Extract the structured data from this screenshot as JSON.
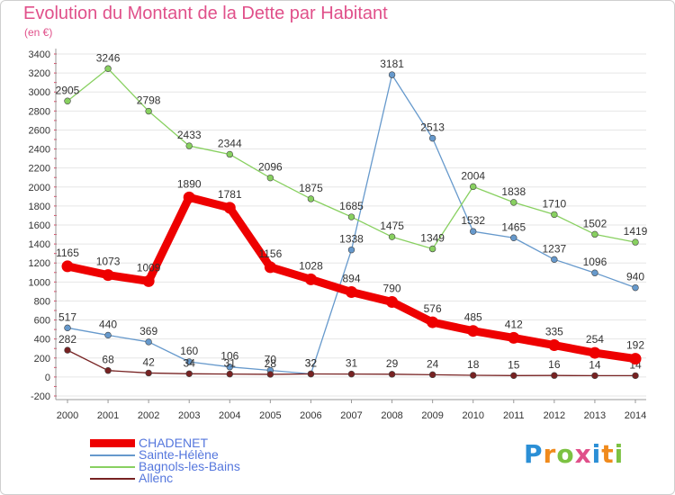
{
  "title": "Evolution du Montant de la Dette par Habitant",
  "subtitle": "(en €)",
  "logo": {
    "text": "Proxiti",
    "colors": [
      "#2b8fd6",
      "#f08a1c",
      "#7cc242",
      "#e0508a",
      "#2b8fd6",
      "#f08a1c",
      "#7cc242"
    ]
  },
  "chart_data": {
    "type": "line",
    "x": [
      "2000",
      "2001",
      "2002",
      "2003",
      "2004",
      "2005",
      "2006",
      "2007",
      "2008",
      "2009",
      "2010",
      "2011",
      "2012",
      "2013",
      "2014"
    ],
    "ylim": [
      -200,
      3400
    ],
    "yticks": [
      -200,
      0,
      200,
      400,
      600,
      800,
      1000,
      1200,
      1400,
      1600,
      1800,
      2000,
      2200,
      2400,
      2600,
      2800,
      3000,
      3200,
      3400
    ],
    "grid": true,
    "legend_position": "bottom-left",
    "series": [
      {
        "name": "CHADENET",
        "color": "#ee0000",
        "emphasis": true,
        "values": [
          1165,
          1073,
          1009,
          1890,
          1781,
          1156,
          1028,
          894,
          790,
          576,
          485,
          412,
          335,
          254,
          192
        ],
        "labels": [
          "1165",
          "1073",
          "1009",
          "1890",
          "1781",
          "1156",
          "1028",
          "894",
          "790",
          "576",
          "485",
          "412",
          "335",
          "254",
          "192"
        ]
      },
      {
        "name": "Sainte-Hélène",
        "color": "#6699cc",
        "emphasis": false,
        "values": [
          517,
          440,
          369,
          160,
          106,
          70,
          32,
          1338,
          3181,
          2513,
          1532,
          1465,
          1237,
          1096,
          940
        ],
        "labels": [
          "517",
          "440",
          "369",
          "160",
          "106",
          "70",
          "32",
          "1338",
          "3181",
          "2513",
          "1532",
          "1465",
          "1237",
          "1096",
          "940"
        ]
      },
      {
        "name": "Bagnols-les-Bains",
        "color": "#88d060",
        "emphasis": false,
        "values": [
          2905,
          3246,
          2798,
          2433,
          2344,
          2096,
          1875,
          1685,
          1475,
          1349,
          2004,
          1838,
          1710,
          1502,
          1419
        ],
        "labels": [
          "2905",
          "3246",
          "2798",
          "2433",
          "2344",
          "2096",
          "1875",
          "1685",
          "1475",
          "1349",
          "2004",
          "1838",
          "1710",
          "1502",
          "1419"
        ]
      },
      {
        "name": "Allenc",
        "color": "#772222",
        "emphasis": false,
        "values": [
          282,
          68,
          42,
          34,
          31,
          28,
          32,
          31,
          29,
          24,
          18,
          15,
          16,
          14,
          14
        ],
        "labels": [
          "282",
          "68",
          "42",
          "34",
          "31",
          "28",
          "32",
          "31",
          "29",
          "24",
          "18",
          "15",
          "16",
          "14",
          "14"
        ]
      }
    ]
  }
}
